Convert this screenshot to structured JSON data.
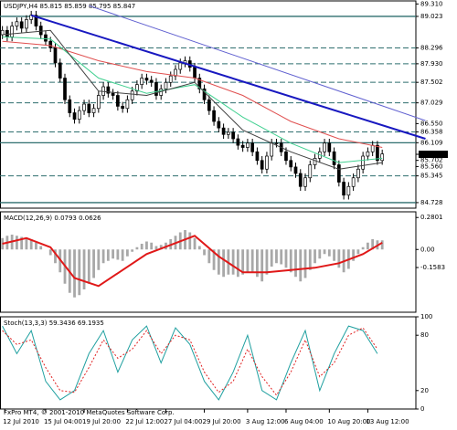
{
  "footer": "FxPro MT4, © 2001-2010 MetaQuotes Software Corp.",
  "chart_data": [
    {
      "type": "candlestick",
      "title": "USDJPY,H4 85.815 85.859 85.795 85.847",
      "xlim": [
        -0.5,
        86
      ],
      "xticks": [
        {
          "value": 0.5,
          "label": "12 Jul 2010"
        },
        {
          "value": 9,
          "label": "15 Jul 04:00"
        },
        {
          "value": 17,
          "label": "19 Jul 20:00"
        },
        {
          "value": 26,
          "label": "22 Jul 12:00"
        },
        {
          "value": 34,
          "label": "27 Jul 04:00"
        },
        {
          "value": 42,
          "label": "29 Jul 20:00"
        },
        {
          "value": 51,
          "label": "3 Aug 12:00"
        },
        {
          "value": 59,
          "label": "6 Aug 04:00"
        },
        {
          "value": 68,
          "label": "10 Aug 20:00"
        },
        {
          "value": 76,
          "label": "13 Aug 12:00"
        }
      ],
      "ylim": [
        84.6,
        89.38
      ],
      "yticks": [
        {
          "value": 89.31,
          "label": "89.310"
        },
        {
          "value": 89.023,
          "label": "89.023",
          "line": "solid"
        },
        {
          "value": 88.296,
          "label": "88.296",
          "line": "dashed"
        },
        {
          "value": 87.93,
          "label": "87.930",
          "line": "dashed"
        },
        {
          "value": 87.502,
          "label": "87.502",
          "line": "dashed"
        },
        {
          "value": 87.029,
          "label": "87.029",
          "line": "dashed"
        },
        {
          "value": 86.55,
          "label": "86.550"
        },
        {
          "value": 86.358,
          "label": "86.358",
          "line": "dashed"
        },
        {
          "value": 86.109,
          "label": "86.109",
          "line": "solid"
        },
        {
          "value": 85.842,
          "label": "85.842",
          "current": true
        },
        {
          "value": 85.702,
          "label": "85.702"
        },
        {
          "value": 85.56,
          "label": "85.560"
        },
        {
          "value": 85.345,
          "label": "85.345",
          "line": "dashed"
        },
        {
          "value": 84.728,
          "label": "84.728",
          "line": "solid"
        }
      ],
      "level_color": "#2f6f6f",
      "open": [
        88.6,
        88.7,
        88.55,
        88.8,
        88.9,
        88.75,
        88.95,
        89.05,
        88.8,
        88.6,
        88.45,
        88.3,
        87.95,
        87.6,
        87.1,
        86.8,
        86.65,
        86.85,
        87.0,
        86.8,
        86.9,
        87.2,
        87.4,
        87.25,
        87.2,
        86.95,
        86.9,
        87.1,
        87.3,
        87.45,
        87.6,
        87.55,
        87.5,
        87.2,
        87.35,
        87.5,
        87.65,
        87.8,
        87.95,
        88.0,
        87.85,
        87.6,
        87.35,
        87.1,
        86.85,
        86.6,
        86.45,
        86.3,
        86.35,
        86.2,
        86.05,
        86.0,
        86.1,
        85.9,
        85.7,
        85.5,
        85.8,
        86.1,
        86.1,
        85.9,
        85.7,
        85.55,
        85.4,
        85.1,
        85.3,
        85.6,
        85.75,
        85.9,
        86.1,
        85.9,
        85.6,
        85.2,
        84.9,
        85.1,
        85.3,
        85.5,
        85.8,
        85.9,
        86.05,
        85.7
      ],
      "high": [
        88.8,
        88.8,
        88.9,
        89.0,
        89.0,
        89.05,
        89.15,
        89.15,
        88.9,
        88.7,
        88.55,
        88.4,
        88.05,
        87.7,
        87.2,
        86.9,
        86.95,
        87.1,
        87.1,
        87.0,
        87.3,
        87.5,
        87.5,
        87.35,
        87.3,
        87.05,
        87.2,
        87.4,
        87.55,
        87.7,
        87.7,
        87.65,
        87.6,
        87.45,
        87.6,
        87.75,
        87.9,
        88.05,
        88.1,
        88.1,
        87.95,
        87.7,
        87.45,
        87.2,
        86.95,
        86.7,
        86.55,
        86.45,
        86.45,
        86.3,
        86.15,
        86.2,
        86.2,
        86.0,
        85.8,
        85.9,
        86.2,
        86.2,
        86.2,
        86.0,
        85.8,
        85.65,
        85.5,
        85.4,
        85.7,
        85.85,
        86.0,
        86.2,
        86.2,
        86.0,
        85.7,
        85.3,
        85.2,
        85.4,
        85.6,
        85.9,
        86.0,
        86.15,
        86.15,
        85.95
      ],
      "low": [
        88.5,
        88.45,
        88.45,
        88.7,
        88.65,
        88.65,
        88.85,
        88.7,
        88.5,
        88.35,
        88.2,
        87.85,
        87.5,
        87.0,
        86.7,
        86.55,
        86.55,
        86.75,
        86.7,
        86.7,
        86.8,
        87.1,
        87.15,
        87.1,
        86.85,
        86.8,
        86.8,
        87.0,
        87.2,
        87.35,
        87.45,
        87.4,
        87.1,
        87.1,
        87.25,
        87.4,
        87.55,
        87.7,
        87.85,
        87.75,
        87.5,
        87.25,
        87.0,
        86.75,
        86.5,
        86.35,
        86.2,
        86.2,
        86.1,
        85.95,
        85.9,
        85.9,
        85.8,
        85.6,
        85.4,
        85.4,
        85.7,
        86.0,
        85.8,
        85.6,
        85.45,
        85.3,
        85.0,
        85.0,
        85.2,
        85.5,
        85.65,
        85.8,
        85.8,
        85.5,
        85.1,
        84.8,
        84.8,
        85.0,
        85.2,
        85.4,
        85.7,
        85.8,
        85.6,
        85.6
      ],
      "close": [
        88.7,
        88.55,
        88.8,
        88.9,
        88.75,
        88.95,
        89.05,
        88.8,
        88.6,
        88.45,
        88.3,
        87.95,
        87.6,
        87.1,
        86.8,
        86.65,
        86.85,
        87.0,
        86.8,
        86.9,
        87.2,
        87.4,
        87.25,
        87.2,
        86.95,
        86.9,
        87.1,
        87.3,
        87.45,
        87.6,
        87.55,
        87.5,
        87.2,
        87.35,
        87.5,
        87.65,
        87.8,
        87.95,
        88.0,
        87.85,
        87.6,
        87.35,
        87.1,
        86.85,
        86.6,
        86.45,
        86.3,
        86.35,
        86.2,
        86.05,
        86.0,
        86.1,
        85.9,
        85.7,
        85.5,
        85.8,
        86.1,
        86.1,
        85.9,
        85.7,
        85.55,
        85.4,
        85.1,
        85.3,
        85.6,
        85.75,
        85.9,
        86.1,
        85.9,
        85.6,
        85.2,
        84.9,
        85.1,
        85.3,
        85.5,
        85.8,
        85.9,
        86.05,
        85.7,
        85.85
      ],
      "lines": [
        {
          "color": "#e05050",
          "x": [
            0,
            10,
            20,
            30,
            40,
            50,
            60,
            70,
            79
          ],
          "values": [
            88.45,
            88.35,
            88.0,
            87.75,
            87.6,
            87.2,
            86.6,
            86.2,
            86.0
          ]
        },
        {
          "color": "#40d090",
          "x": [
            0,
            10,
            20,
            30,
            40,
            50,
            60,
            70,
            79
          ],
          "values": [
            88.55,
            88.5,
            87.6,
            87.25,
            87.45,
            86.7,
            86.1,
            85.65,
            85.75
          ]
        },
        {
          "color": "#404040",
          "x": [
            0,
            10,
            20,
            30,
            40,
            50,
            60,
            70,
            79
          ],
          "values": [
            88.6,
            88.7,
            87.3,
            87.2,
            87.5,
            86.4,
            85.9,
            85.5,
            85.65
          ]
        },
        {
          "color": "#1818c0",
          "width": 2,
          "x": [
            6,
            88
          ],
          "values": [
            89.05,
            86.2
          ]
        },
        {
          "color": "#6060d0",
          "width": 1,
          "x": [
            18,
            88
          ],
          "values": [
            89.27,
            86.62
          ]
        }
      ]
    },
    {
      "type": "macd",
      "title": "MACD(12,26,9) 0.0793 0.0626",
      "ylim": [
        -0.55,
        0.33
      ],
      "yticks": [
        {
          "value": 0.2801,
          "label": "0.2801"
        },
        {
          "value": 0,
          "label": "0.00"
        },
        {
          "value": -0.1583,
          "label": "-0.1583"
        }
      ],
      "histogram": {
        "color": "#a8a8a8",
        "values": [
          0.1,
          0.12,
          0.13,
          0.12,
          0.11,
          0.1,
          0.09,
          0.06,
          0.03,
          0.0,
          -0.05,
          -0.12,
          -0.2,
          -0.3,
          -0.38,
          -0.42,
          -0.4,
          -0.35,
          -0.3,
          -0.25,
          -0.18,
          -0.12,
          -0.1,
          -0.08,
          -0.09,
          -0.1,
          -0.06,
          -0.02,
          0.02,
          0.05,
          0.07,
          0.06,
          0.03,
          0.04,
          0.06,
          0.09,
          0.12,
          0.15,
          0.17,
          0.15,
          0.1,
          0.03,
          -0.05,
          -0.12,
          -0.18,
          -0.22,
          -0.24,
          -0.22,
          -0.22,
          -0.24,
          -0.22,
          -0.2,
          -0.2,
          -0.24,
          -0.28,
          -0.22,
          -0.15,
          -0.12,
          -0.13,
          -0.16,
          -0.2,
          -0.24,
          -0.28,
          -0.25,
          -0.18,
          -0.12,
          -0.08,
          -0.04,
          -0.06,
          -0.1,
          -0.16,
          -0.2,
          -0.17,
          -0.1,
          -0.04,
          0.02,
          0.06,
          0.09,
          0.08,
          0.08
        ]
      },
      "lines": [
        {
          "color": "#e01818",
          "width": 2,
          "x": [
            0,
            5,
            10,
            15,
            20,
            25,
            30,
            35,
            40,
            45,
            50,
            55,
            60,
            65,
            70,
            75,
            79
          ],
          "values": [
            0.05,
            0.1,
            0.02,
            -0.25,
            -0.32,
            -0.18,
            -0.04,
            0.04,
            0.12,
            -0.06,
            -0.2,
            -0.2,
            -0.18,
            -0.16,
            -0.12,
            -0.04,
            0.06
          ]
        }
      ]
    },
    {
      "type": "stochastic",
      "title": "Stoch(13,3,3) 59.3436 69.1935",
      "ylim": [
        0,
        100
      ],
      "yticks": [
        100,
        80,
        20,
        0
      ],
      "lines": [
        {
          "color": "#20a0a0",
          "x": [
            0,
            3,
            6,
            9,
            12,
            15,
            18,
            21,
            24,
            27,
            30,
            33,
            36,
            39,
            42,
            45,
            48,
            51,
            54,
            57,
            60,
            63,
            66,
            69,
            72,
            75,
            78
          ],
          "values": [
            90,
            60,
            85,
            30,
            10,
            20,
            60,
            85,
            40,
            75,
            90,
            50,
            88,
            70,
            30,
            10,
            40,
            80,
            20,
            10,
            50,
            85,
            20,
            60,
            90,
            85,
            60
          ]
        },
        {
          "color": "#e02020",
          "dash": true,
          "x": [
            0,
            3,
            6,
            9,
            12,
            15,
            18,
            21,
            24,
            27,
            30,
            33,
            36,
            39,
            42,
            45,
            48,
            51,
            54,
            57,
            60,
            63,
            66,
            69,
            72,
            75,
            78
          ],
          "values": [
            85,
            70,
            75,
            45,
            20,
            18,
            45,
            75,
            55,
            65,
            85,
            60,
            80,
            75,
            40,
            18,
            30,
            65,
            35,
            15,
            40,
            75,
            35,
            50,
            80,
            88,
            65
          ]
        }
      ]
    }
  ]
}
